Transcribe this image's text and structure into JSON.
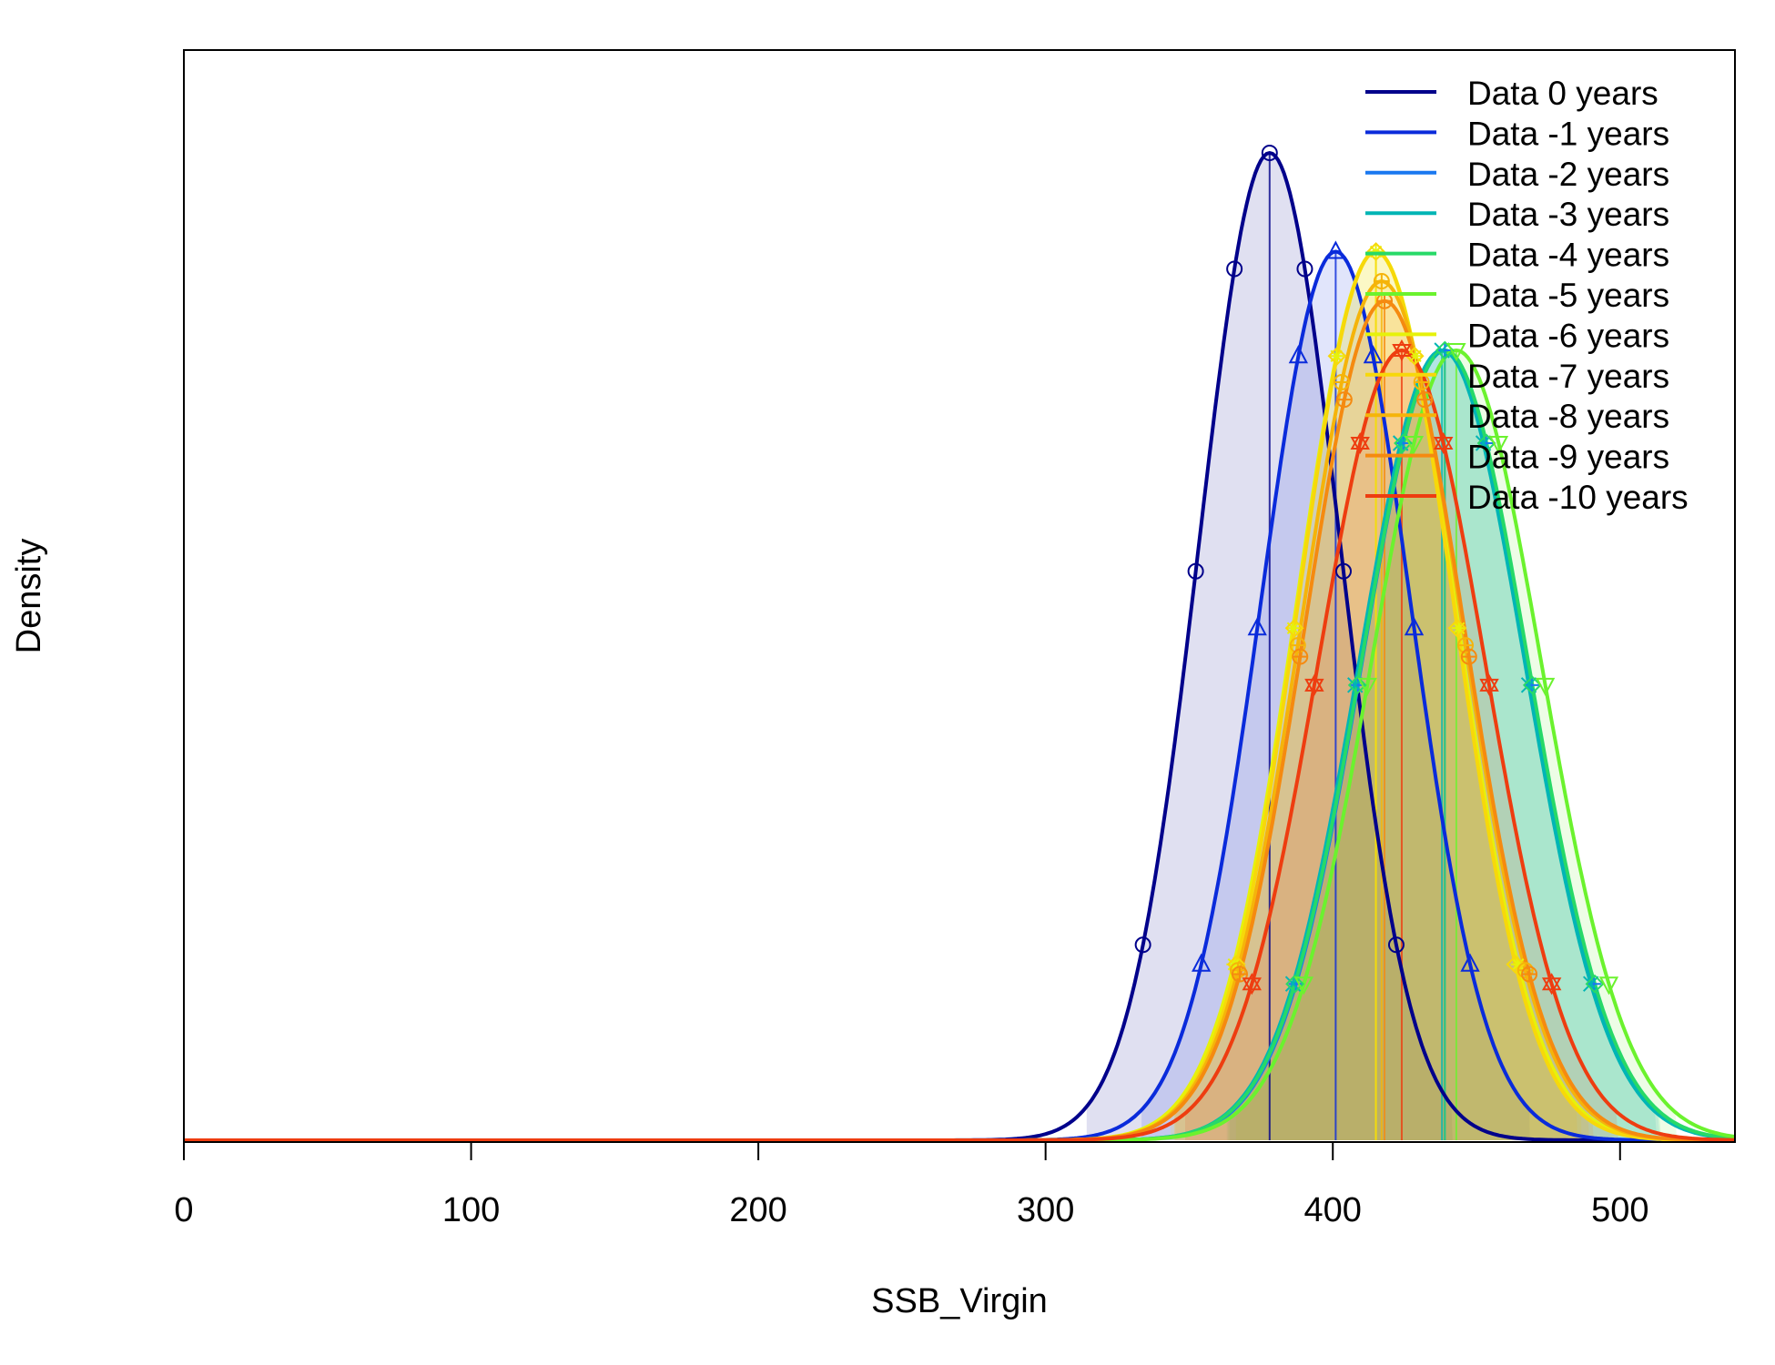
{
  "chart_data": {
    "type": "line",
    "title": "",
    "xlabel": "SSB_Virgin",
    "ylabel": "Density",
    "xlim": [
      0,
      540
    ],
    "ylim": [
      0,
      1.0
    ],
    "x_ticks": [
      "0",
      "100",
      "200",
      "300",
      "400",
      "500"
    ],
    "x_tick_values": [
      0,
      100,
      200,
      300,
      400,
      500
    ],
    "legend_position": "top-right",
    "density_unit_note": "y values normalized so that the Data 0 years peak = 1",
    "series": [
      {
        "name": "Data 0 years",
        "color": "#00008B",
        "mean": 378,
        "sd": 24.5,
        "peak": 1.0,
        "marker": "circle"
      },
      {
        "name": "Data -1 years",
        "color": "#0A2BDB",
        "mean": 401,
        "sd": 26.0,
        "peak": 0.9,
        "marker": "triangle-up"
      },
      {
        "name": "Data -2 years",
        "color": "#1A78F0",
        "mean": 439,
        "sd": 28.8,
        "peak": 0.8,
        "marker": "plus"
      },
      {
        "name": "Data -3 years",
        "color": "#00B5B5",
        "mean": 438,
        "sd": 28.8,
        "peak": 0.8,
        "marker": "x"
      },
      {
        "name": "Data -4 years",
        "color": "#27D968",
        "mean": 439,
        "sd": 29.0,
        "peak": 0.8,
        "marker": "diamond"
      },
      {
        "name": "Data -5 years",
        "color": "#6BF22E",
        "mean": 443,
        "sd": 29.5,
        "peak": 0.8,
        "marker": "triangle-down"
      },
      {
        "name": "Data -6 years",
        "color": "#E6F20A",
        "mean": 415,
        "sd": 27.5,
        "peak": 0.9,
        "marker": "asterisk"
      },
      {
        "name": "Data -7 years",
        "color": "#F7D80A",
        "mean": 415,
        "sd": 27.0,
        "peak": 0.9,
        "marker": "diamond"
      },
      {
        "name": "Data -8 years",
        "color": "#F5B40A",
        "mean": 417,
        "sd": 27.8,
        "peak": 0.87,
        "marker": "circle-plus"
      },
      {
        "name": "Data -9 years",
        "color": "#F58A10",
        "mean": 418,
        "sd": 28.0,
        "peak": 0.85,
        "marker": "circle-plus"
      },
      {
        "name": "Data -10 years",
        "color": "#EE3D10",
        "mean": 424,
        "sd": 29.0,
        "peak": 0.8,
        "marker": "star-of-david"
      }
    ]
  }
}
